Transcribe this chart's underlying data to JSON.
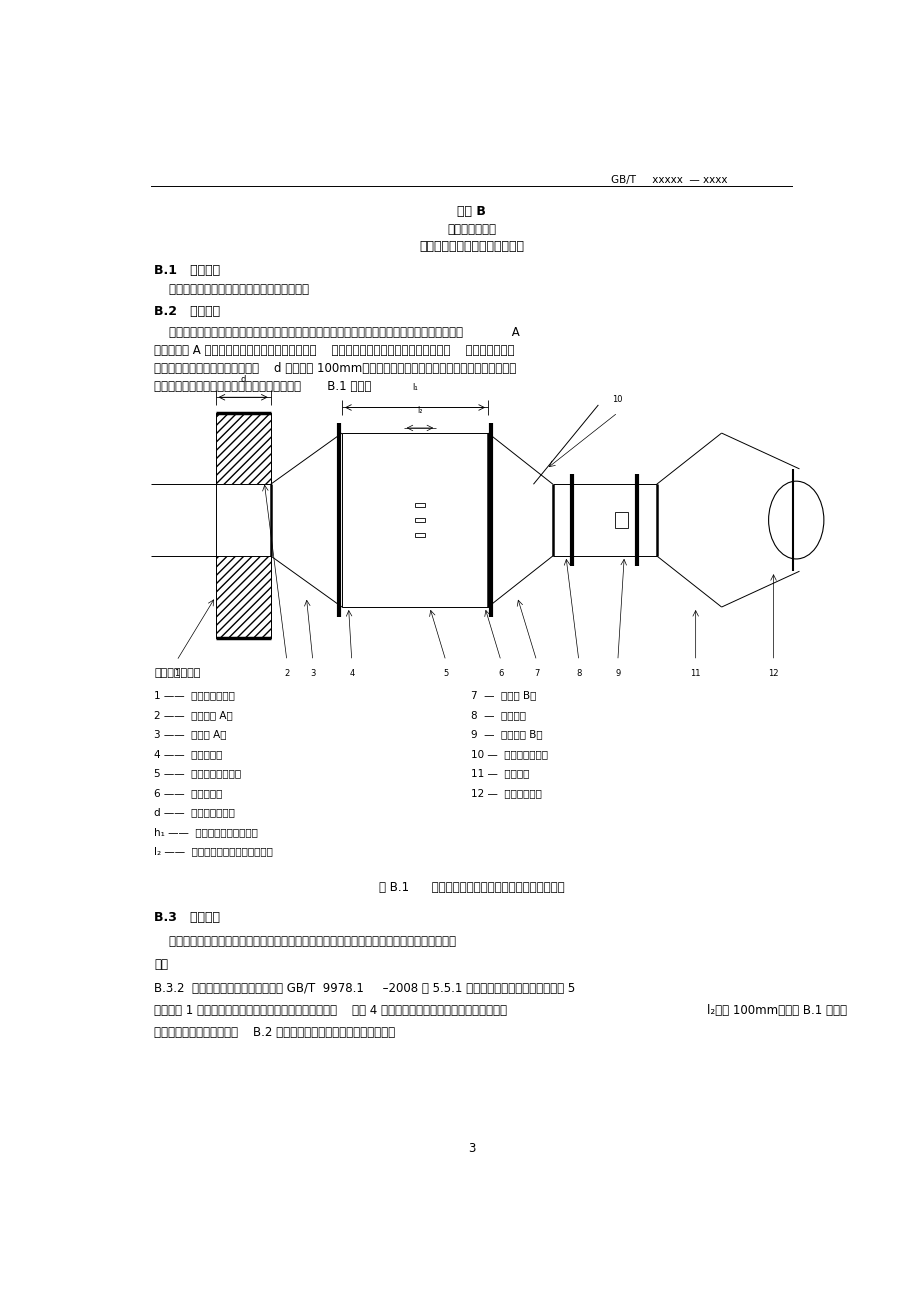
{
  "page_width": 9.2,
  "page_height": 13.03,
  "bg_color": "#ffffff",
  "header_text": "GB/T     xxxxx  — xxxx",
  "title1": "附录 B",
  "title2": "（规范性附录）",
  "title3": "通风消声器耐高温性能试验方法",
  "section_B1": "B.1   适用范围",
  "section_B1_text": "    本附录适用于通风消声器耐高温性能的测试。",
  "section_B2": "B.2   试件安装",
  "section_B2_para1": "    通风消声器试件的安装应尽可能反映实际使用情况。试件应安装在耐高温试验炉外側，由变径管             A",
  "section_B2_para2": "及连接管道 A 穿过分隔构件与耐高温试验炉相连。    试验用分隔构件应与实际使用时一致，    当不能确定时，",
  "section_B2_para3": "可选用混凝土或砂体结构，其厚度    d 不应小于 100mm。制作分隔构件时，应进行常规养护及干燥处理。",
  "section_B2_para4": "通风消声器耐高温性能试验试件安装示意图如图       B.1 所示。",
  "legend_title": "标引序号说明：",
  "legend_items_left": [
    "1 ——  耐高温试验炉；",
    "2 ——  连接管道 A；",
    "3 ——  变径管 A；",
    "4 ——  连接法兰；",
    "5 ——  通风消声器试件；",
    "6 ——  测温热偶；",
    "d ——  分隔构件厚度；",
    "h₁ ——  通风消声器试件长度；",
    "l₂ ——  测温热偶距消声器末端距离；"
  ],
  "legend_items_right": [
    "7  —  变径管 B；",
    "8  —  调节阁；",
    "9  —  连接管道 B；",
    "10 —  传感器导出口；",
    "11 —  冷凝器；",
    "12 —  引风机系统。"
  ],
  "fig_caption": "图 B.1      通风消声器耐高温性能试验试件安装示意图",
  "section_B3": "B.3   试验装置",
  "section_B3_text": "    通风消声器耐高温试验装置主要包括耐高温试验炉、变径管、连接管道、调节阁、引风机系统",
  "section_B3_cont": "等。",
  "section_B32": "B.3.2  耐高温试验炉测温热偶应满足 GB/T  9978.1     –2008 中 5.5.1 的要求，测温热偶数量不应少于 5",
  "section_B32_cont1": "个，其中 1 个应设在通风消声器试件末端内截面中心处，    另外 4 个应分设在通风消声器试件末端内截面四",
  "section_B32_cont2": "l₂应为 100mm，如图 B.1 所示。",
  "section_B32_para2": "分之一面积的中心处，如图    B.2 所示，测温点距通风消声器末端的距离",
  "page_number": "3"
}
